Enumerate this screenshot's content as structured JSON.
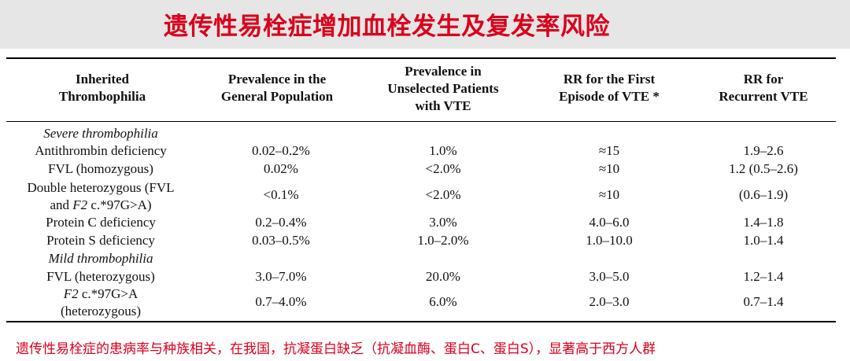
{
  "title": "遗传性易栓症增加血栓发生及复发率风险",
  "table": {
    "headers": [
      [
        "Inherited",
        "Thrombophilia"
      ],
      [
        "Prevalence in the",
        "General Population"
      ],
      [
        "Prevalence in",
        "Unselected Patients",
        "with VTE"
      ],
      [
        "RR for the First",
        "Episode of VTE *"
      ],
      [
        "RR for",
        "Recurrent VTE"
      ]
    ],
    "sections": [
      {
        "label": "Severe thrombophilia",
        "rows": [
          {
            "name": [
              "Antithrombin deficiency"
            ],
            "general": "0.02–0.2%",
            "unselected": "1.0%",
            "rr_first": "≈15",
            "rr_recurrent": "1.9–2.6"
          },
          {
            "name": [
              "FVL (homozygous)"
            ],
            "general": "0.02%",
            "unselected": "<2.0%",
            "rr_first": "≈10",
            "rr_recurrent": "1.2 (0.5–2.6)"
          },
          {
            "name": [
              "Double heterozygous (FVL",
              "and",
              "F2",
              "c.*97G>A)"
            ],
            "general": "<0.1%",
            "unselected": "<2.0%",
            "rr_first": "≈10",
            "rr_recurrent": "(0.6–1.9)"
          },
          {
            "name": [
              "Protein C deficiency"
            ],
            "general": "0.2–0.4%",
            "unselected": "3.0%",
            "rr_first": "4.0–6.0",
            "rr_recurrent": "1.4–1.8"
          },
          {
            "name": [
              "Protein S deficiency"
            ],
            "general": "0.03–0.5%",
            "unselected": "1.0–2.0%",
            "rr_first": "1.0–10.0",
            "rr_recurrent": "1.0–1.4"
          }
        ]
      },
      {
        "label": "Mild thrombophilia",
        "rows": [
          {
            "name": [
              "FVL (heterozygous)"
            ],
            "general": "3.0–7.0%",
            "unselected": "20.0%",
            "rr_first": "3.0–5.0",
            "rr_recurrent": "1.2–1.4"
          },
          {
            "name": [
              "F2",
              "c.*97G>A",
              "(heterozygous)"
            ],
            "general": "0.7–4.0%",
            "unselected": "6.0%",
            "rr_first": "2.0–3.0",
            "rr_recurrent": "0.7–1.4"
          }
        ]
      }
    ]
  },
  "footnote": "遗传性易栓症的患病率与种族相关，在我国，抗凝蛋白缺乏（抗凝血酶、蛋白C、蛋白S），显著高于西方人群",
  "colors": {
    "title": "#d9001b",
    "footnote": "#d9001b",
    "title_band": "#e6e6e6"
  }
}
